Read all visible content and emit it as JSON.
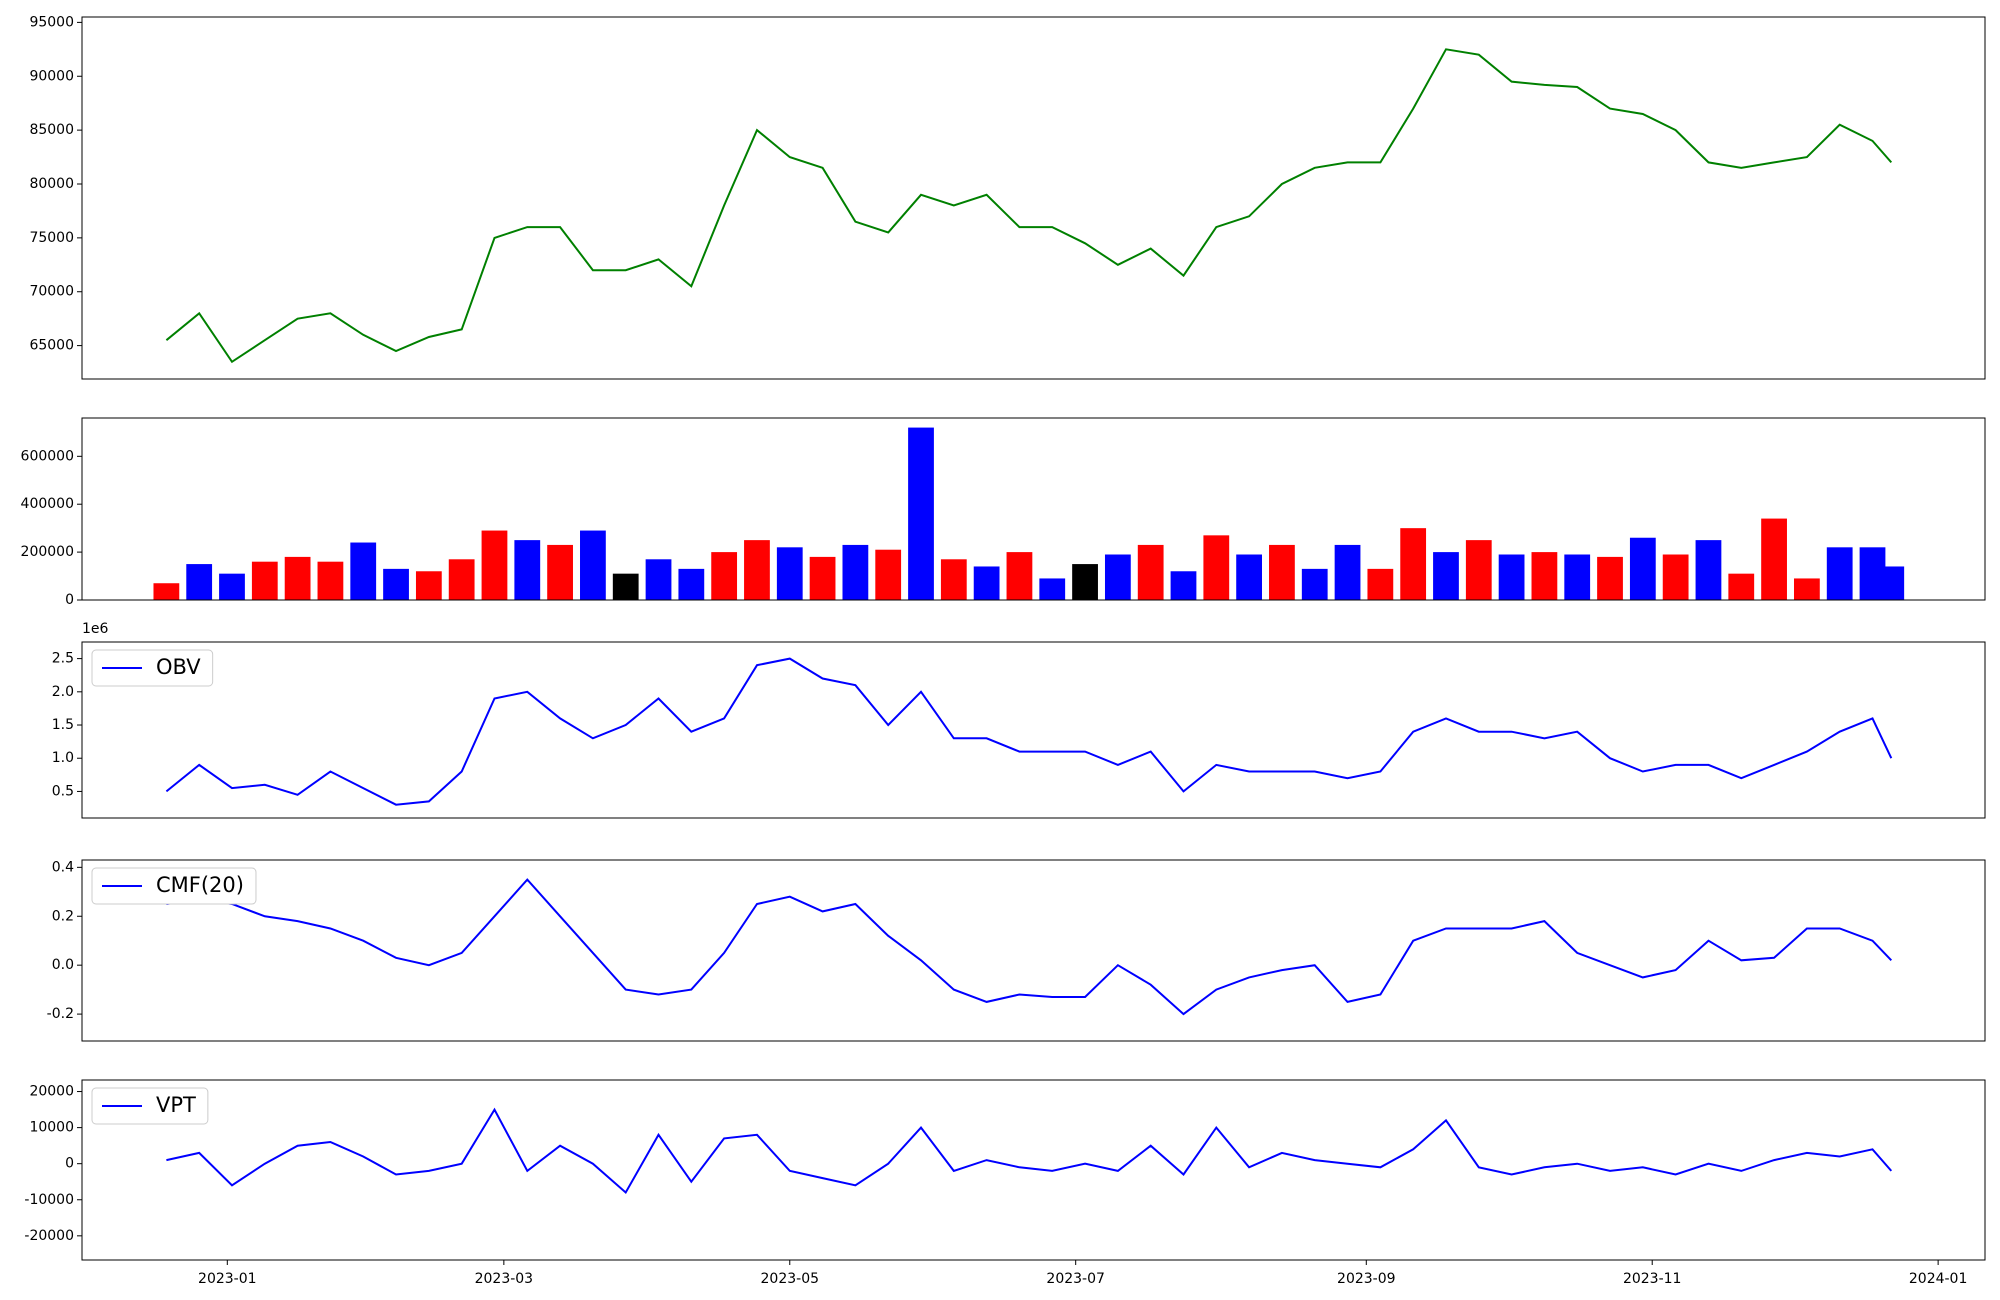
{
  "chart_data": [
    {
      "type": "line",
      "x": [
        "2022-12-19",
        "2022-12-26",
        "2023-01-02",
        "2023-01-09",
        "2023-01-16",
        "2023-01-23",
        "2023-01-30",
        "2023-02-06",
        "2023-02-13",
        "2023-02-20",
        "2023-02-27",
        "2023-03-06",
        "2023-03-13",
        "2023-03-20",
        "2023-03-27",
        "2023-04-03",
        "2023-04-10",
        "2023-04-17",
        "2023-04-24",
        "2023-05-01",
        "2023-05-08",
        "2023-05-15",
        "2023-05-22",
        "2023-05-29",
        "2023-06-05",
        "2023-06-12",
        "2023-06-19",
        "2023-06-26",
        "2023-07-03",
        "2023-07-10",
        "2023-07-17",
        "2023-07-24",
        "2023-07-31",
        "2023-08-07",
        "2023-08-14",
        "2023-08-21",
        "2023-08-28",
        "2023-09-04",
        "2023-09-11",
        "2023-09-18",
        "2023-09-25",
        "2023-10-02",
        "2023-10-09",
        "2023-10-16",
        "2023-10-23",
        "2023-10-30",
        "2023-11-06",
        "2023-11-13",
        "2023-11-20",
        "2023-11-27",
        "2023-12-04",
        "2023-12-11",
        "2023-12-18",
        "2023-12-22"
      ],
      "values": [
        65500,
        68000,
        63500,
        65500,
        67500,
        68000,
        66000,
        64500,
        65800,
        66500,
        75000,
        76000,
        76000,
        72000,
        72000,
        73000,
        70500,
        78000,
        85000,
        82500,
        81500,
        76500,
        75500,
        79000,
        78000,
        79000,
        76000,
        76000,
        74500,
        72500,
        74000,
        71500,
        76000,
        77000,
        80000,
        81500,
        82000,
        82000,
        87000,
        92500,
        92000,
        89500,
        89200,
        89000,
        87000,
        86500,
        85000,
        82000,
        81500,
        82000,
        82500,
        85500,
        84000,
        82000
      ],
      "color": "#008000",
      "xlim": [
        "2022-12-01",
        "2024-01-11"
      ],
      "ylim": [
        61900,
        95500
      ],
      "yticks": [
        65000,
        70000,
        75000,
        80000,
        85000,
        90000,
        95000
      ]
    },
    {
      "type": "bar",
      "x": [
        "2022-12-19",
        "2022-12-26",
        "2023-01-02",
        "2023-01-09",
        "2023-01-16",
        "2023-01-23",
        "2023-01-30",
        "2023-02-06",
        "2023-02-13",
        "2023-02-20",
        "2023-02-27",
        "2023-03-06",
        "2023-03-13",
        "2023-03-20",
        "2023-03-27",
        "2023-04-03",
        "2023-04-10",
        "2023-04-17",
        "2023-04-24",
        "2023-05-01",
        "2023-05-08",
        "2023-05-15",
        "2023-05-22",
        "2023-05-29",
        "2023-06-05",
        "2023-06-12",
        "2023-06-19",
        "2023-06-26",
        "2023-07-03",
        "2023-07-10",
        "2023-07-17",
        "2023-07-24",
        "2023-07-31",
        "2023-08-07",
        "2023-08-14",
        "2023-08-21",
        "2023-08-28",
        "2023-09-04",
        "2023-09-11",
        "2023-09-18",
        "2023-09-25",
        "2023-10-02",
        "2023-10-09",
        "2023-10-16",
        "2023-10-23",
        "2023-10-30",
        "2023-11-06",
        "2023-11-13",
        "2023-11-20",
        "2023-11-27",
        "2023-12-04",
        "2023-12-11",
        "2023-12-18",
        "2023-12-22"
      ],
      "values": [
        70000,
        150000,
        110000,
        160000,
        180000,
        160000,
        240000,
        130000,
        120000,
        170000,
        290000,
        250000,
        230000,
        290000,
        110000,
        170000,
        130000,
        200000,
        250000,
        220000,
        180000,
        230000,
        210000,
        720000,
        170000,
        140000,
        200000,
        90000,
        150000,
        190000,
        230000,
        120000,
        270000,
        190000,
        230000,
        130000,
        230000,
        130000,
        300000,
        200000,
        250000,
        190000,
        200000,
        190000,
        180000,
        260000,
        190000,
        250000,
        110000,
        340000,
        90000,
        220000,
        220000,
        140000
      ],
      "colors": [
        "#ff0000",
        "#0000ff",
        "#0000ff",
        "#ff0000",
        "#ff0000",
        "#ff0000",
        "#0000ff",
        "#0000ff",
        "#ff0000",
        "#ff0000",
        "#ff0000",
        "#0000ff",
        "#ff0000",
        "#0000ff",
        "#000000",
        "#0000ff",
        "#0000ff",
        "#ff0000",
        "#ff0000",
        "#0000ff",
        "#ff0000",
        "#0000ff",
        "#ff0000",
        "#0000ff",
        "#ff0000",
        "#0000ff",
        "#ff0000",
        "#0000ff",
        "#000000",
        "#0000ff",
        "#ff0000",
        "#0000ff",
        "#ff0000",
        "#0000ff",
        "#ff0000",
        "#0000ff",
        "#0000ff",
        "#ff0000",
        "#ff0000",
        "#0000ff",
        "#ff0000",
        "#0000ff",
        "#ff0000",
        "#0000ff",
        "#ff0000",
        "#0000ff",
        "#ff0000",
        "#0000ff",
        "#ff0000",
        "#ff0000",
        "#ff0000",
        "#0000ff",
        "#0000ff",
        "#0000ff"
      ],
      "xlim": [
        "2022-12-01",
        "2024-01-11"
      ],
      "ylim": [
        0,
        760000
      ],
      "yticks": [
        0,
        200000,
        400000,
        600000
      ]
    },
    {
      "type": "line",
      "x": [
        "2022-12-19",
        "2022-12-26",
        "2023-01-02",
        "2023-01-09",
        "2023-01-16",
        "2023-01-23",
        "2023-01-30",
        "2023-02-06",
        "2023-02-13",
        "2023-02-20",
        "2023-02-27",
        "2023-03-06",
        "2023-03-13",
        "2023-03-20",
        "2023-03-27",
        "2023-04-03",
        "2023-04-10",
        "2023-04-17",
        "2023-04-24",
        "2023-05-01",
        "2023-05-08",
        "2023-05-15",
        "2023-05-22",
        "2023-05-29",
        "2023-06-05",
        "2023-06-12",
        "2023-06-19",
        "2023-06-26",
        "2023-07-03",
        "2023-07-10",
        "2023-07-17",
        "2023-07-24",
        "2023-07-31",
        "2023-08-07",
        "2023-08-14",
        "2023-08-21",
        "2023-08-28",
        "2023-09-04",
        "2023-09-11",
        "2023-09-18",
        "2023-09-25",
        "2023-10-02",
        "2023-10-09",
        "2023-10-16",
        "2023-10-23",
        "2023-10-30",
        "2023-11-06",
        "2023-11-13",
        "2023-11-20",
        "2023-11-27",
        "2023-12-04",
        "2023-12-11",
        "2023-12-18",
        "2023-12-22"
      ],
      "series": [
        {
          "name": "OBV",
          "color": "#0000ff",
          "values": [
            0.5,
            0.9,
            0.55,
            0.6,
            0.45,
            0.8,
            0.55,
            0.3,
            0.35,
            0.8,
            1.9,
            2.0,
            1.6,
            1.3,
            1.5,
            1.9,
            1.4,
            1.6,
            2.4,
            2.5,
            2.2,
            2.1,
            1.5,
            2.0,
            1.3,
            1.3,
            1.1,
            1.1,
            1.1,
            0.9,
            1.1,
            0.5,
            0.9,
            0.8,
            0.8,
            0.8,
            0.7,
            0.8,
            1.4,
            1.6,
            1.4,
            1.4,
            1.3,
            1.4,
            1.0,
            0.8,
            0.9,
            0.9,
            0.7,
            0.9,
            1.1,
            1.4,
            1.6,
            1.0
          ]
        }
      ],
      "offset_text": "1e6",
      "legend": "upper-left",
      "xlim": [
        "2022-12-01",
        "2024-01-11"
      ],
      "ylim": [
        0.1,
        2.75
      ],
      "yticks": [
        0.5,
        {
          "value": 1,
          "label": "1.0"
        },
        1.5,
        {
          "value": 2,
          "label": "2.0"
        },
        2.5
      ]
    },
    {
      "type": "line",
      "x": [
        "2022-12-19",
        "2022-12-26",
        "2023-01-02",
        "2023-01-09",
        "2023-01-16",
        "2023-01-23",
        "2023-01-30",
        "2023-02-06",
        "2023-02-13",
        "2023-02-20",
        "2023-02-27",
        "2023-03-06",
        "2023-03-13",
        "2023-03-20",
        "2023-03-27",
        "2023-04-03",
        "2023-04-10",
        "2023-04-17",
        "2023-04-24",
        "2023-05-01",
        "2023-05-08",
        "2023-05-15",
        "2023-05-22",
        "2023-05-29",
        "2023-06-05",
        "2023-06-12",
        "2023-06-19",
        "2023-06-26",
        "2023-07-03",
        "2023-07-10",
        "2023-07-17",
        "2023-07-24",
        "2023-07-31",
        "2023-08-07",
        "2023-08-14",
        "2023-08-21",
        "2023-08-28",
        "2023-09-04",
        "2023-09-11",
        "2023-09-18",
        "2023-09-25",
        "2023-10-02",
        "2023-10-09",
        "2023-10-16",
        "2023-10-23",
        "2023-10-30",
        "2023-11-06",
        "2023-11-13",
        "2023-11-20",
        "2023-11-27",
        "2023-12-04",
        "2023-12-11",
        "2023-12-18",
        "2023-12-22"
      ],
      "series": [
        {
          "name": "CMF(20)",
          "color": "#0000ff",
          "values": [
            0.25,
            0.27,
            0.25,
            0.2,
            0.18,
            0.15,
            0.1,
            0.03,
            0.0,
            0.05,
            0.2,
            0.35,
            0.2,
            0.05,
            -0.1,
            -0.12,
            -0.1,
            0.05,
            0.25,
            0.28,
            0.22,
            0.25,
            0.12,
            0.02,
            -0.1,
            -0.15,
            -0.12,
            -0.13,
            -0.13,
            0.0,
            -0.08,
            -0.2,
            -0.1,
            -0.05,
            -0.02,
            0.0,
            -0.15,
            -0.12,
            0.1,
            0.15,
            0.15,
            0.15,
            0.18,
            0.05,
            0.0,
            -0.05,
            -0.02,
            0.1,
            0.02,
            0.03,
            0.15,
            0.15,
            0.1,
            0.02
          ]
        }
      ],
      "legend": "upper-left",
      "xlim": [
        "2022-12-01",
        "2024-01-11"
      ],
      "ylim": [
        -0.31,
        0.43
      ],
      "yticks": [
        -0.2,
        {
          "value": 0,
          "label": "0.0"
        },
        0.2,
        0.4
      ]
    },
    {
      "type": "line",
      "x": [
        "2022-12-19",
        "2022-12-26",
        "2023-01-02",
        "2023-01-09",
        "2023-01-16",
        "2023-01-23",
        "2023-01-30",
        "2023-02-06",
        "2023-02-13",
        "2023-02-20",
        "2023-02-27",
        "2023-03-06",
        "2023-03-13",
        "2023-03-20",
        "2023-03-27",
        "2023-04-03",
        "2023-04-10",
        "2023-04-17",
        "2023-04-24",
        "2023-05-01",
        "2023-05-08",
        "2023-05-15",
        "2023-05-22",
        "2023-05-29",
        "2023-06-05",
        "2023-06-12",
        "2023-06-19",
        "2023-06-26",
        "2023-07-03",
        "2023-07-10",
        "2023-07-17",
        "2023-07-24",
        "2023-07-31",
        "2023-08-07",
        "2023-08-14",
        "2023-08-21",
        "2023-08-28",
        "2023-09-04",
        "2023-09-11",
        "2023-09-18",
        "2023-09-25",
        "2023-10-02",
        "2023-10-09",
        "2023-10-16",
        "2023-10-23",
        "2023-10-30",
        "2023-11-06",
        "2023-11-13",
        "2023-11-20",
        "2023-11-27",
        "2023-12-04",
        "2023-12-11",
        "2023-12-18",
        "2023-12-22"
      ],
      "series": [
        {
          "name": "VPT",
          "color": "#0000ff",
          "values": [
            1000,
            3000,
            -6000,
            0,
            5000,
            6000,
            2000,
            -3000,
            -2000,
            0,
            15000,
            -2000,
            5000,
            0,
            -8000,
            8000,
            -5000,
            7000,
            8000,
            -2000,
            -4000,
            -6000,
            0,
            10000,
            -2000,
            1000,
            -1000,
            -2000,
            0,
            -2000,
            5000,
            -3000,
            10000,
            -1000,
            3000,
            1000,
            0,
            -1000,
            4000,
            12000,
            -1000,
            -3000,
            -1000,
            0,
            -2000,
            -1000,
            -3000,
            0,
            -2000,
            1000,
            3000,
            2000,
            4000,
            -2000
          ]
        }
      ],
      "legend": "upper-left",
      "xlim": [
        "2022-12-01",
        "2024-01-11"
      ],
      "ylim": [
        -26700,
        23200
      ],
      "yticks": [
        -20000,
        -10000,
        0,
        10000,
        20000
      ],
      "xticks": [
        {
          "value": "2023-01-01",
          "label": "2023-01"
        },
        {
          "value": "2023-03-01",
          "label": "2023-03"
        },
        {
          "value": "2023-05-01",
          "label": "2023-05"
        },
        {
          "value": "2023-07-01",
          "label": "2023-07"
        },
        {
          "value": "2023-09-01",
          "label": "2023-09"
        },
        {
          "value": "2023-11-01",
          "label": "2023-11"
        },
        {
          "value": "2024-01-01",
          "label": "2024-01"
        }
      ]
    }
  ]
}
